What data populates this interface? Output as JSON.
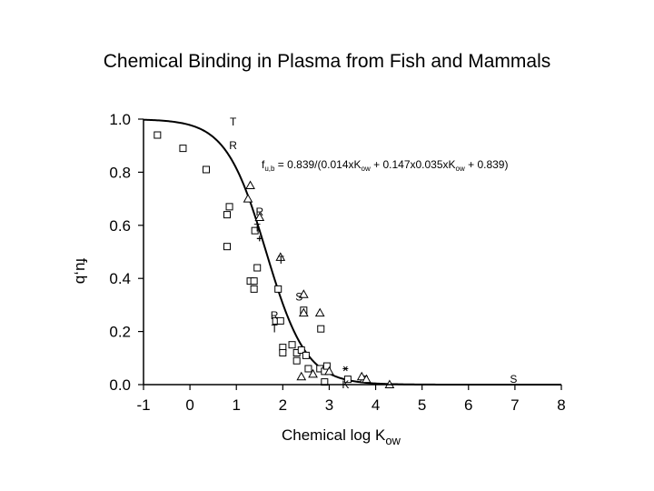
{
  "title": "Chemical Binding in Plasma from Fish and Mammals",
  "chart_data": {
    "type": "scatter",
    "xlabel": {
      "main": "Chemical log K",
      "sub": "ow"
    },
    "ylabel": "fu,b",
    "xlim": [
      -1,
      8
    ],
    "ylim": [
      0.0,
      1.0
    ],
    "x_ticks": [
      "-1",
      "0",
      "1",
      "2",
      "3",
      "4",
      "5",
      "6",
      "7",
      "8"
    ],
    "y_ticks": [
      "0.0",
      "0.2",
      "0.4",
      "0.6",
      "0.8",
      "1.0"
    ],
    "grid": false,
    "equation": {
      "parts": [
        {
          "text": "f",
          "sub": false
        },
        {
          "text": "u,b",
          "sub": true
        },
        {
          "text": " = 0.839/(0.014xK",
          "sub": false
        },
        {
          "text": "ow",
          "sub": true
        },
        {
          "text": " + 0.147x0.035xK",
          "sub": false
        },
        {
          "text": "ow",
          "sub": true
        },
        {
          "text": " + 0.839)",
          "sub": false
        }
      ]
    },
    "curve": {
      "type": "line",
      "formula": "0.839/(0.014*10^x + 0.147*0.035*10^x + 0.839)",
      "x_range": [
        -1,
        8
      ]
    },
    "series": [
      {
        "marker": "square",
        "points": [
          [
            -0.7,
            0.94
          ],
          [
            -0.15,
            0.89
          ],
          [
            0.35,
            0.81
          ],
          [
            0.85,
            0.67
          ],
          [
            0.8,
            0.64
          ],
          [
            0.8,
            0.52
          ],
          [
            1.4,
            0.58
          ],
          [
            1.45,
            0.44
          ],
          [
            1.3,
            0.39
          ],
          [
            1.38,
            0.36
          ],
          [
            1.38,
            0.39
          ],
          [
            1.9,
            0.36
          ],
          [
            1.85,
            0.24
          ],
          [
            1.95,
            0.24
          ],
          [
            2.0,
            0.14
          ],
          [
            2.0,
            0.12
          ],
          [
            2.2,
            0.15
          ],
          [
            2.3,
            0.12
          ],
          [
            2.3,
            0.09
          ],
          [
            2.4,
            0.13
          ],
          [
            2.5,
            0.11
          ],
          [
            2.45,
            0.28
          ],
          [
            2.55,
            0.06
          ],
          [
            2.8,
            0.06
          ],
          [
            2.9,
            0.05
          ],
          [
            2.95,
            0.07
          ],
          [
            2.9,
            0.01
          ],
          [
            2.82,
            0.21
          ],
          [
            3.4,
            0.02
          ],
          [
            3.75,
            0.02
          ]
        ]
      },
      {
        "marker": "triangle",
        "points": [
          [
            1.3,
            0.75
          ],
          [
            1.25,
            0.7
          ],
          [
            1.5,
            0.63
          ],
          [
            1.95,
            0.48
          ],
          [
            2.45,
            0.34
          ],
          [
            2.45,
            0.27
          ],
          [
            2.8,
            0.27
          ],
          [
            2.4,
            0.03
          ],
          [
            2.65,
            0.04
          ],
          [
            3.0,
            0.05
          ],
          [
            3.7,
            0.03
          ],
          [
            3.8,
            0.02
          ],
          [
            4.3,
            0.0
          ]
        ]
      },
      {
        "marker": "letter",
        "points": [
          {
            "x": 0.93,
            "y": 0.99,
            "label": "T"
          },
          {
            "x": 0.93,
            "y": 0.9,
            "label": "R"
          },
          {
            "x": 1.5,
            "y": 0.65,
            "label": "R"
          },
          {
            "x": 1.45,
            "y": 0.59,
            "label": "T"
          },
          {
            "x": 1.96,
            "y": 0.47,
            "label": "T"
          },
          {
            "x": 2.35,
            "y": 0.33,
            "label": "S"
          },
          {
            "x": 1.82,
            "y": 0.26,
            "label": "R"
          },
          {
            "x": 1.82,
            "y": 0.21,
            "label": "T"
          },
          {
            "x": 3.35,
            "y": 0.0,
            "label": "K"
          },
          {
            "x": 6.97,
            "y": 0.02,
            "label": "S"
          }
        ]
      },
      {
        "marker": "plus",
        "points": [
          [
            1.5,
            0.55
          ]
        ]
      },
      {
        "marker": "asterisk",
        "points": [
          [
            3.35,
            0.06
          ]
        ]
      }
    ]
  }
}
